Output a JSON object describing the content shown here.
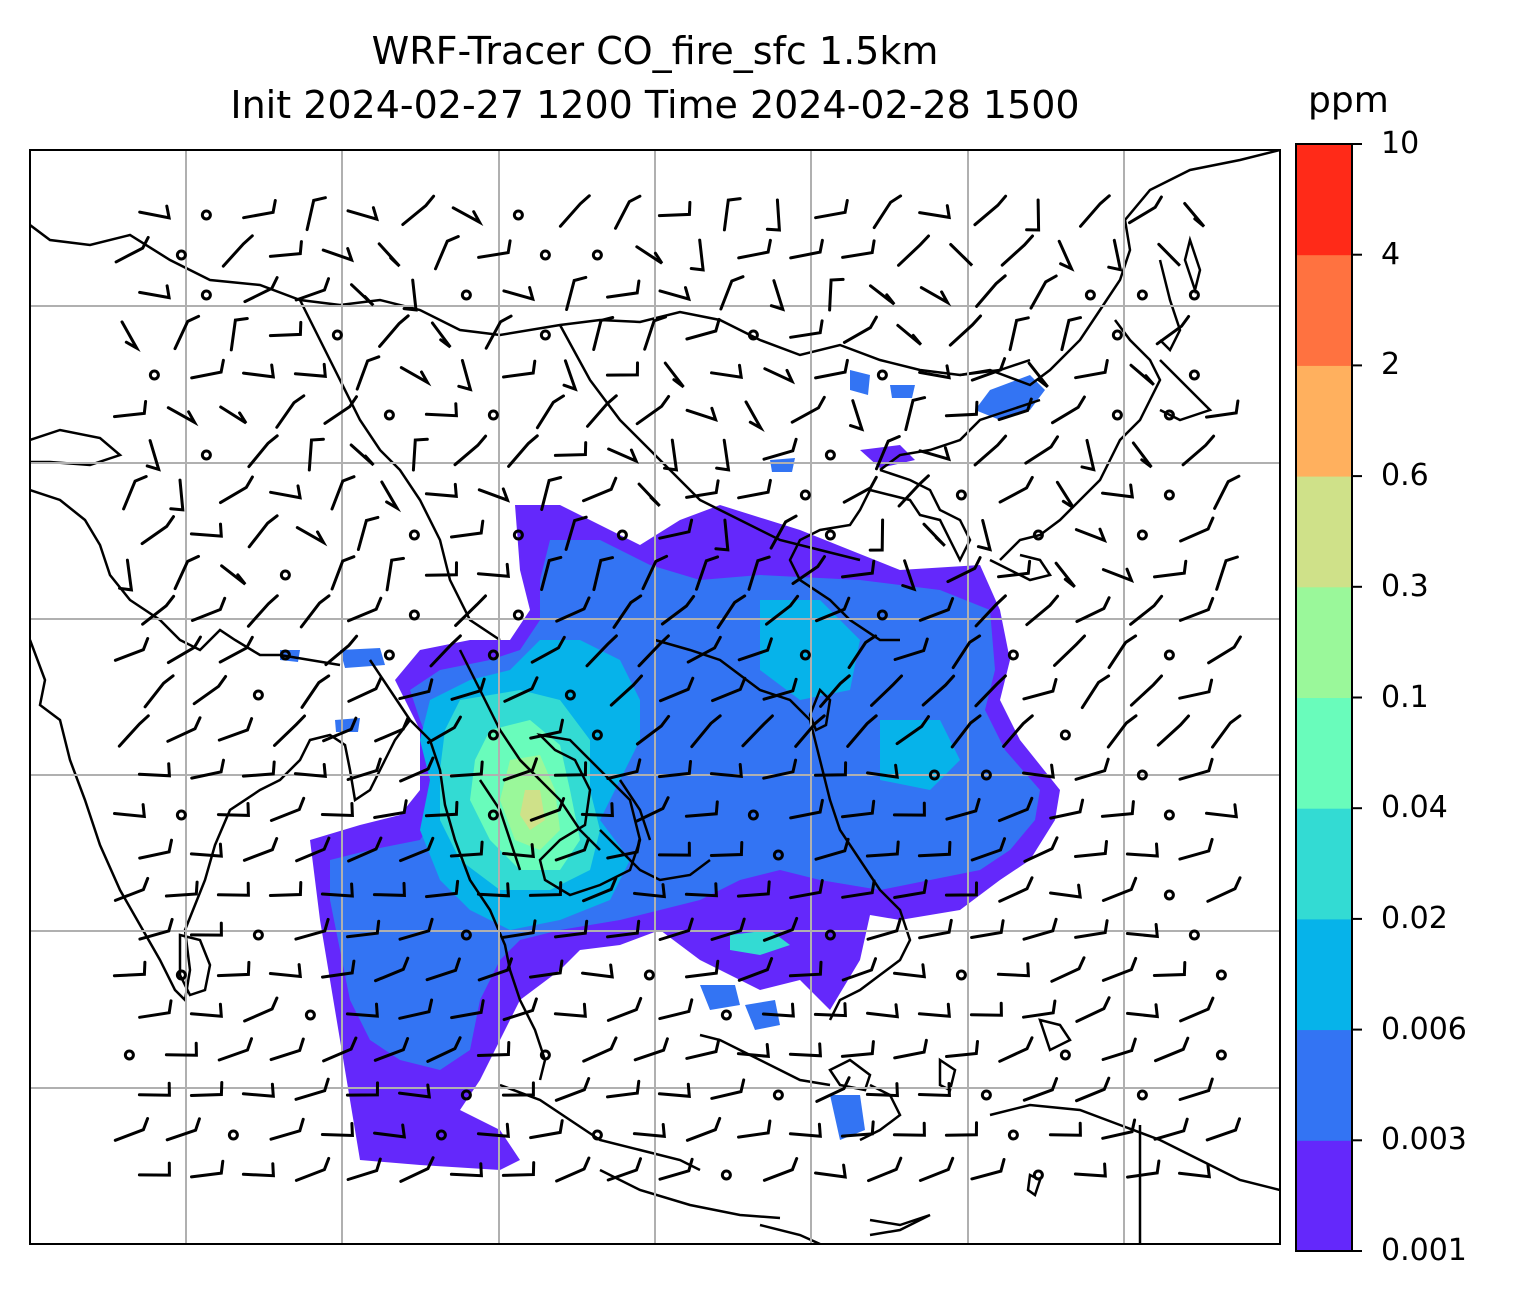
{
  "title": {
    "line1": "WRF-Tracer CO_fire_sfc 1.5km",
    "line2": "Init 2024-02-27 1200 Time 2024-02-28 1500"
  },
  "colorbar": {
    "unit": "ppm",
    "levels": [
      "0.001",
      "0.003",
      "0.006",
      "0.02",
      "0.04",
      "0.1",
      "0.3",
      "0.6",
      "2",
      "4",
      "10"
    ],
    "colors": [
      "#6428fb",
      "#3374f3",
      "#06b3ea",
      "#33dbd3",
      "#69fcbb",
      "#9af89a",
      "#cfe189",
      "#ffb05e",
      "#ff7240",
      "#ff2a18"
    ]
  },
  "map": {
    "projection": "regional map of South/East Asia",
    "gridlines": true,
    "coastlines": true,
    "wind_barbs": true
  }
}
